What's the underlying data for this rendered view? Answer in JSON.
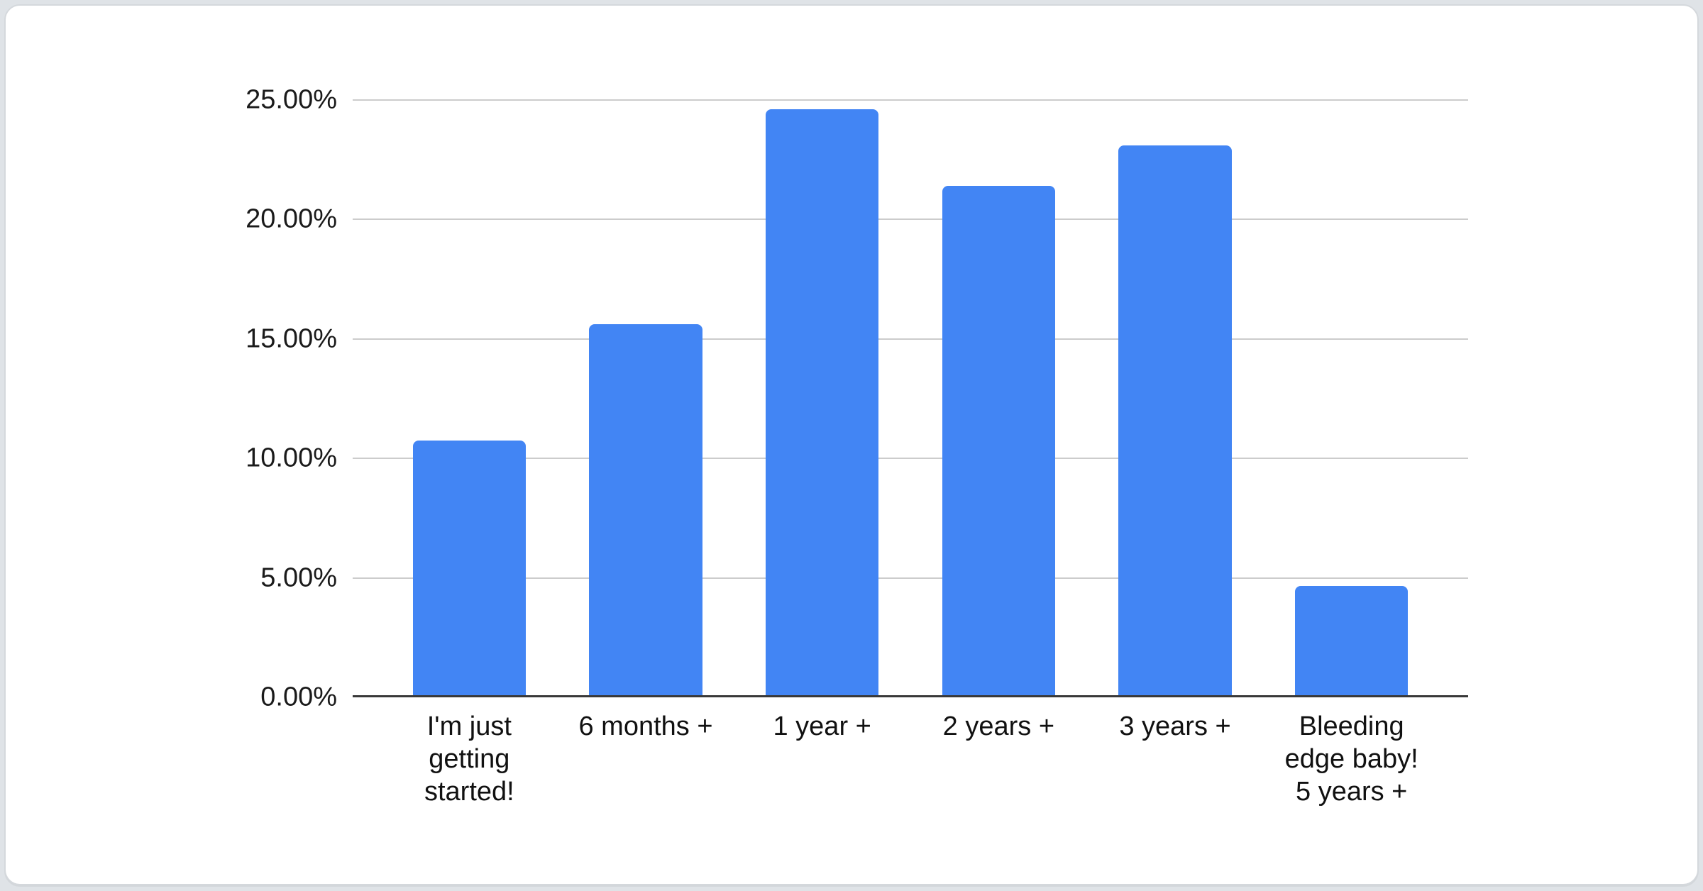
{
  "page": {
    "background_color": "#dfe3e7",
    "card_background_color": "#ffffff"
  },
  "chart_data": {
    "type": "bar",
    "title": "",
    "xlabel": "",
    "ylabel": "",
    "categories": [
      "I'm just\ngetting\nstarted!",
      "6 months +",
      "1 year +",
      "2 years +",
      "3 years +",
      "Bleeding\nedge baby!\n5 years +"
    ],
    "values": [
      10.7,
      15.6,
      24.6,
      21.4,
      23.1,
      4.6
    ],
    "ylim": [
      0,
      25
    ],
    "y_tick_step": 5,
    "y_ticks": [
      "0.00%",
      "5.00%",
      "10.00%",
      "15.00%",
      "20.00%",
      "25.00%"
    ],
    "grid": true,
    "legend": "none",
    "bar_color": "#4285F4",
    "gridline_color": "#cccccc",
    "axis_line_color": "#383838",
    "tick_label_color": "#1a1a1a",
    "category_label_color": "#111111"
  }
}
